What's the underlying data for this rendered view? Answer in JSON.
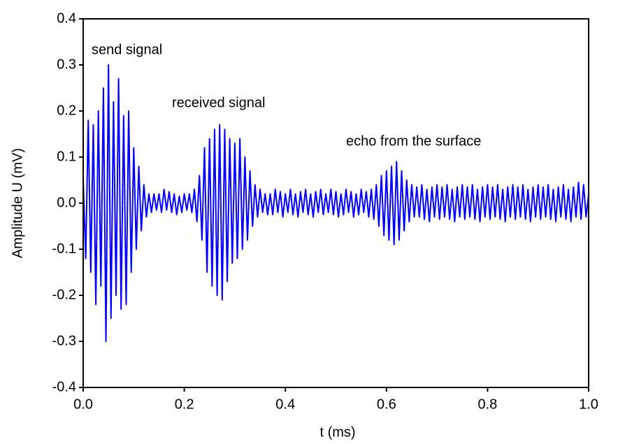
{
  "chart_data": {
    "type": "line",
    "xlabel": "t (ms)",
    "ylabel": "Amplitude U (mV)",
    "annotations": [
      "send signal",
      "received signal",
      "echo from the surface"
    ],
    "color": "#0000ff",
    "xlim": [
      0,
      1
    ],
    "ylim": [
      -0.4,
      0.4
    ],
    "xticks": [
      {
        "value": 0,
        "label": "0.0"
      },
      0.2,
      0.4,
      0.6,
      0.8,
      {
        "value": 1,
        "label": "1.0"
      }
    ],
    "yticks": [
      -0.4,
      -0.3,
      -0.2,
      -0.1,
      {
        "value": 0,
        "label": "0.0"
      },
      0.1,
      0.2,
      0.3,
      0.4
    ],
    "grid": false,
    "x": [
      0,
      0.005,
      0.01,
      0.015,
      0.02,
      0.025,
      0.03,
      0.035,
      0.04,
      0.045,
      0.05,
      0.055,
      0.06,
      0.065,
      0.07,
      0.075,
      0.08,
      0.085,
      0.09,
      0.095,
      0.1,
      0.105,
      0.11,
      0.115,
      0.12,
      0.125,
      0.13,
      0.135,
      0.14,
      0.145,
      0.15,
      0.155,
      0.16,
      0.165,
      0.17,
      0.175,
      0.18,
      0.185,
      0.19,
      0.195,
      0.2,
      0.205,
      0.21,
      0.215,
      0.22,
      0.225,
      0.23,
      0.235,
      0.24,
      0.245,
      0.25,
      0.255,
      0.26,
      0.265,
      0.27,
      0.275,
      0.28,
      0.285,
      0.29,
      0.295,
      0.3,
      0.305,
      0.31,
      0.315,
      0.32,
      0.325,
      0.33,
      0.335,
      0.34,
      0.345,
      0.35,
      0.355,
      0.36,
      0.365,
      0.37,
      0.375,
      0.38,
      0.385,
      0.39,
      0.395,
      0.4,
      0.405,
      0.41,
      0.415,
      0.42,
      0.425,
      0.43,
      0.435,
      0.44,
      0.445,
      0.45,
      0.455,
      0.46,
      0.465,
      0.47,
      0.475,
      0.48,
      0.485,
      0.49,
      0.495,
      0.5,
      0.505,
      0.51,
      0.515,
      0.52,
      0.525,
      0.53,
      0.535,
      0.54,
      0.545,
      0.55,
      0.555,
      0.56,
      0.565,
      0.57,
      0.575,
      0.58,
      0.585,
      0.59,
      0.595,
      0.6,
      0.605,
      0.61,
      0.615,
      0.62,
      0.625,
      0.63,
      0.635,
      0.64,
      0.645,
      0.65,
      0.655,
      0.66,
      0.665,
      0.67,
      0.675,
      0.68,
      0.685,
      0.69,
      0.695,
      0.7,
      0.705,
      0.71,
      0.715,
      0.72,
      0.725,
      0.73,
      0.735,
      0.74,
      0.745,
      0.75,
      0.755,
      0.76,
      0.765,
      0.77,
      0.775,
      0.78,
      0.785,
      0.79,
      0.795,
      0.8,
      0.805,
      0.81,
      0.815,
      0.82,
      0.825,
      0.83,
      0.835,
      0.84,
      0.845,
      0.85,
      0.855,
      0.86,
      0.865,
      0.87,
      0.875,
      0.88,
      0.885,
      0.89,
      0.895,
      0.9,
      0.905,
      0.91,
      0.915,
      0.92,
      0.925,
      0.93,
      0.935,
      0.94,
      0.945,
      0.95,
      0.955,
      0.96,
      0.965,
      0.97,
      0.975,
      0.98,
      0.985,
      0.99,
      0.995,
      1
    ],
    "values": [
      0.05,
      -0.12,
      0.18,
      -0.15,
      0.17,
      -0.22,
      0.2,
      -0.18,
      0.25,
      -0.3,
      0.3,
      -0.25,
      0.22,
      -0.2,
      0.27,
      -0.23,
      0.19,
      -0.22,
      0.2,
      -0.15,
      0.12,
      -0.1,
      0.08,
      -0.06,
      0.04,
      -0.03,
      0.02,
      -0.02,
      0.02,
      -0.015,
      0.02,
      -0.02,
      0.03,
      -0.015,
      0.025,
      -0.02,
      0.02,
      -0.025,
      0.015,
      -0.02,
      0.02,
      -0.015,
      0.02,
      -0.02,
      0.03,
      -0.04,
      0.06,
      -0.08,
      0.12,
      -0.15,
      0.14,
      -0.18,
      0.16,
      -0.2,
      0.17,
      -0.21,
      0.16,
      -0.17,
      0.14,
      -0.13,
      0.13,
      -0.12,
      0.14,
      -0.1,
      0.1,
      -0.08,
      0.07,
      -0.05,
      0.04,
      -0.03,
      0.03,
      -0.02,
      0.02,
      -0.025,
      0.02,
      -0.025,
      0.03,
      -0.02,
      0.025,
      -0.03,
      0.02,
      -0.02,
      0.03,
      -0.025,
      0.02,
      -0.03,
      0.025,
      -0.02,
      0.03,
      -0.025,
      0.02,
      -0.03,
      0.025,
      -0.02,
      0.03,
      -0.025,
      0.02,
      -0.02,
      0.03,
      -0.025,
      0.025,
      -0.03,
      0.02,
      -0.025,
      0.03,
      -0.02,
      0.025,
      -0.03,
      0.02,
      -0.025,
      0.03,
      -0.02,
      0.025,
      -0.03,
      0.03,
      -0.035,
      0.04,
      -0.05,
      0.06,
      -0.07,
      0.07,
      -0.08,
      0.08,
      -0.09,
      0.09,
      -0.08,
      0.07,
      -0.06,
      0.05,
      -0.04,
      0.04,
      -0.03,
      0.035,
      -0.03,
      0.04,
      -0.035,
      0.03,
      -0.04,
      0.035,
      -0.03,
      0.04,
      -0.035,
      0.035,
      -0.03,
      0.04,
      -0.035,
      0.03,
      -0.04,
      0.035,
      -0.03,
      0.04,
      -0.035,
      0.035,
      -0.03,
      0.04,
      -0.035,
      0.03,
      -0.04,
      0.035,
      -0.03,
      0.04,
      -0.035,
      0.035,
      -0.03,
      0.04,
      -0.035,
      0.03,
      -0.04,
      0.035,
      -0.03,
      0.04,
      -0.035,
      0.035,
      -0.03,
      0.04,
      -0.035,
      0.03,
      -0.04,
      0.035,
      -0.03,
      0.04,
      -0.035,
      0.035,
      -0.03,
      0.04,
      -0.035,
      0.03,
      -0.04,
      0.035,
      -0.03,
      0.04,
      -0.035,
      0.03,
      -0.04,
      0.035,
      -0.03,
      0.045,
      -0.035,
      0.04,
      -0.03,
      0.02
    ]
  }
}
